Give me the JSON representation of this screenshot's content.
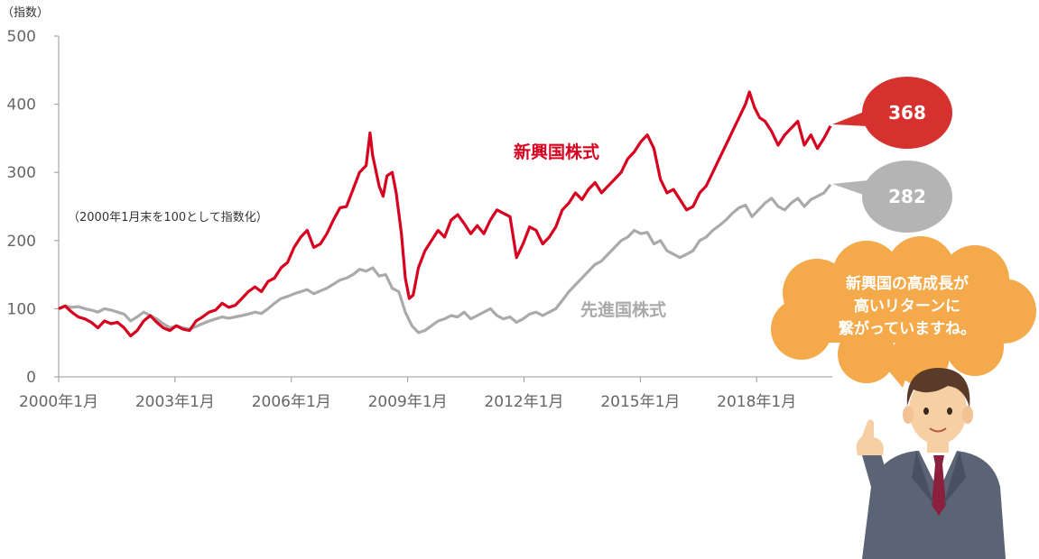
{
  "chart_data": {
    "type": "line",
    "y_unit_label": "（指数）",
    "note": "（2000年1月末を100として指数化）",
    "ylim": [
      0,
      500
    ],
    "y_ticks": [
      "0",
      "100",
      "200",
      "300",
      "400",
      "500"
    ],
    "x_tick_labels": [
      "2000年1月",
      "2003年1月",
      "2006年1月",
      "2009年1月",
      "2012年1月",
      "2015年1月",
      "2018年1月"
    ],
    "series": [
      {
        "name": "新興国株式",
        "color": "#d7001f",
        "end_value_label": "368",
        "points": [
          [
            2000.0,
            100
          ],
          [
            2000.25,
            104
          ],
          [
            2000.5,
            95
          ],
          [
            2000.75,
            88
          ],
          [
            2001.0,
            85
          ],
          [
            2001.25,
            80
          ],
          [
            2001.5,
            72
          ],
          [
            2001.75,
            82
          ],
          [
            2002.0,
            78
          ],
          [
            2002.25,
            80
          ],
          [
            2002.5,
            72
          ],
          [
            2002.75,
            60
          ],
          [
            2003.0,
            68
          ],
          [
            2003.25,
            82
          ],
          [
            2003.5,
            90
          ],
          [
            2003.75,
            80
          ],
          [
            2004.0,
            72
          ],
          [
            2004.25,
            68
          ],
          [
            2004.5,
            75
          ],
          [
            2004.75,
            70
          ],
          [
            2005.0,
            68
          ],
          [
            2005.25,
            82
          ],
          [
            2005.5,
            88
          ],
          [
            2005.75,
            95
          ],
          [
            2006.0,
            98
          ],
          [
            2006.25,
            108
          ],
          [
            2006.5,
            102
          ],
          [
            2006.75,
            105
          ],
          [
            2007.0,
            115
          ],
          [
            2007.25,
            125
          ],
          [
            2007.5,
            132
          ],
          [
            2007.75,
            125
          ],
          [
            2008.0,
            140
          ],
          [
            2008.25,
            145
          ],
          [
            2008.5,
            160
          ],
          [
            2008.75,
            168
          ],
          [
            2009.0,
            190
          ],
          [
            2009.25,
            205
          ],
          [
            2009.5,
            215
          ],
          [
            2009.75,
            190
          ],
          [
            2010.0,
            195
          ],
          [
            2010.25,
            210
          ],
          [
            2010.5,
            230
          ],
          [
            2010.75,
            248
          ],
          [
            2011.0,
            250
          ],
          [
            2011.25,
            275
          ],
          [
            2011.5,
            300
          ],
          [
            2011.75,
            310
          ],
          [
            2011.9,
            358
          ],
          [
            2012.0,
            325
          ],
          [
            2012.25,
            280
          ],
          [
            2012.4,
            265
          ],
          [
            2012.55,
            295
          ],
          [
            2012.75,
            300
          ],
          [
            2012.9,
            270
          ],
          [
            2013.1,
            210
          ],
          [
            2013.25,
            145
          ],
          [
            2013.4,
            115
          ],
          [
            2013.55,
            120
          ],
          [
            2013.75,
            160
          ],
          [
            2014.0,
            185
          ],
          [
            2014.25,
            200
          ],
          [
            2014.5,
            215
          ],
          [
            2014.75,
            205
          ],
          [
            2015.0,
            230
          ],
          [
            2015.25,
            238
          ],
          [
            2015.5,
            225
          ],
          [
            2015.75,
            210
          ],
          [
            2016.0,
            222
          ],
          [
            2016.25,
            210
          ],
          [
            2016.5,
            230
          ],
          [
            2016.75,
            245
          ],
          [
            2017.0,
            240
          ],
          [
            2017.25,
            235
          ],
          [
            2017.5,
            175
          ],
          [
            2017.75,
            195
          ],
          [
            2018.0,
            220
          ],
          [
            2018.25,
            215
          ],
          [
            2018.5,
            195
          ],
          [
            2018.75,
            205
          ],
          [
            2019.0,
            220
          ],
          [
            2019.25,
            245
          ],
          [
            2019.5,
            255
          ],
          [
            2019.75,
            270
          ],
          [
            2020.0,
            260
          ],
          [
            2020.25,
            275
          ],
          [
            2020.5,
            285
          ],
          [
            2020.75,
            270
          ],
          [
            2021.0,
            280
          ],
          [
            2021.25,
            290
          ],
          [
            2021.5,
            300
          ],
          [
            2021.75,
            320
          ],
          [
            2022.0,
            330
          ],
          [
            2022.25,
            345
          ],
          [
            2022.5,
            355
          ],
          [
            2022.75,
            335
          ],
          [
            2023.0,
            290
          ],
          [
            2023.25,
            270
          ],
          [
            2023.5,
            275
          ],
          [
            2023.75,
            260
          ],
          [
            2024.0,
            245
          ],
          [
            2024.25,
            250
          ],
          [
            2024.5,
            270
          ],
          [
            2024.75,
            280
          ],
          [
            2025.0,
            300
          ],
          [
            2025.25,
            320
          ],
          [
            2025.5,
            340
          ],
          [
            2025.75,
            360
          ],
          [
            2026.0,
            380
          ],
          [
            2026.25,
            400
          ],
          [
            2026.4,
            418
          ],
          [
            2026.6,
            395
          ],
          [
            2026.8,
            380
          ],
          [
            2027.0,
            375
          ],
          [
            2027.25,
            360
          ],
          [
            2027.5,
            340
          ],
          [
            2027.75,
            355
          ],
          [
            2028.0,
            365
          ],
          [
            2028.25,
            375
          ],
          [
            2028.5,
            340
          ],
          [
            2028.75,
            355
          ],
          [
            2029.0,
            335
          ],
          [
            2029.25,
            350
          ],
          [
            2029.5,
            368
          ]
        ]
      },
      {
        "name": "先進国株式",
        "color": "#aaaaaa",
        "end_value_label": "282",
        "points": [
          [
            2000.0,
            100
          ],
          [
            2000.25,
            104
          ],
          [
            2000.5,
            102
          ],
          [
            2000.75,
            103
          ],
          [
            2001.0,
            100
          ],
          [
            2001.25,
            98
          ],
          [
            2001.5,
            95
          ],
          [
            2001.75,
            100
          ],
          [
            2002.0,
            98
          ],
          [
            2002.25,
            95
          ],
          [
            2002.5,
            92
          ],
          [
            2002.75,
            82
          ],
          [
            2003.0,
            88
          ],
          [
            2003.25,
            95
          ],
          [
            2003.5,
            90
          ],
          [
            2003.75,
            85
          ],
          [
            2004.0,
            78
          ],
          [
            2004.25,
            72
          ],
          [
            2004.5,
            75
          ],
          [
            2004.75,
            72
          ],
          [
            2005.0,
            70
          ],
          [
            2005.25,
            74
          ],
          [
            2005.5,
            78
          ],
          [
            2005.75,
            82
          ],
          [
            2006.0,
            85
          ],
          [
            2006.25,
            88
          ],
          [
            2006.5,
            86
          ],
          [
            2006.75,
            88
          ],
          [
            2007.0,
            90
          ],
          [
            2007.25,
            92
          ],
          [
            2007.5,
            95
          ],
          [
            2007.75,
            93
          ],
          [
            2008.0,
            100
          ],
          [
            2008.25,
            108
          ],
          [
            2008.5,
            115
          ],
          [
            2008.75,
            118
          ],
          [
            2009.0,
            122
          ],
          [
            2009.25,
            125
          ],
          [
            2009.5,
            128
          ],
          [
            2009.75,
            122
          ],
          [
            2010.0,
            126
          ],
          [
            2010.25,
            130
          ],
          [
            2010.5,
            136
          ],
          [
            2010.75,
            142
          ],
          [
            2011.0,
            145
          ],
          [
            2011.25,
            150
          ],
          [
            2011.5,
            158
          ],
          [
            2011.75,
            155
          ],
          [
            2012.0,
            160
          ],
          [
            2012.25,
            148
          ],
          [
            2012.5,
            150
          ],
          [
            2012.75,
            130
          ],
          [
            2013.0,
            125
          ],
          [
            2013.25,
            95
          ],
          [
            2013.5,
            75
          ],
          [
            2013.75,
            65
          ],
          [
            2014.0,
            68
          ],
          [
            2014.25,
            75
          ],
          [
            2014.5,
            82
          ],
          [
            2014.75,
            85
          ],
          [
            2015.0,
            90
          ],
          [
            2015.25,
            88
          ],
          [
            2015.5,
            95
          ],
          [
            2015.75,
            85
          ],
          [
            2016.0,
            90
          ],
          [
            2016.25,
            95
          ],
          [
            2016.5,
            100
          ],
          [
            2016.75,
            90
          ],
          [
            2017.0,
            85
          ],
          [
            2017.25,
            88
          ],
          [
            2017.5,
            80
          ],
          [
            2017.75,
            85
          ],
          [
            2018.0,
            92
          ],
          [
            2018.25,
            95
          ],
          [
            2018.5,
            90
          ],
          [
            2018.75,
            95
          ],
          [
            2019.0,
            100
          ],
          [
            2019.25,
            112
          ],
          [
            2019.5,
            125
          ],
          [
            2019.75,
            135
          ],
          [
            2020.0,
            145
          ],
          [
            2020.25,
            155
          ],
          [
            2020.5,
            165
          ],
          [
            2020.75,
            170
          ],
          [
            2021.0,
            180
          ],
          [
            2021.25,
            190
          ],
          [
            2021.5,
            200
          ],
          [
            2021.75,
            205
          ],
          [
            2022.0,
            215
          ],
          [
            2022.25,
            210
          ],
          [
            2022.5,
            212
          ],
          [
            2022.75,
            195
          ],
          [
            2023.0,
            200
          ],
          [
            2023.25,
            185
          ],
          [
            2023.5,
            180
          ],
          [
            2023.75,
            175
          ],
          [
            2024.0,
            180
          ],
          [
            2024.25,
            185
          ],
          [
            2024.5,
            200
          ],
          [
            2024.75,
            205
          ],
          [
            2025.0,
            215
          ],
          [
            2025.25,
            222
          ],
          [
            2025.5,
            230
          ],
          [
            2025.75,
            240
          ],
          [
            2026.0,
            248
          ],
          [
            2026.25,
            252
          ],
          [
            2026.5,
            235
          ],
          [
            2026.75,
            245
          ],
          [
            2027.0,
            255
          ],
          [
            2027.25,
            262
          ],
          [
            2027.5,
            250
          ],
          [
            2027.75,
            245
          ],
          [
            2028.0,
            255
          ],
          [
            2028.25,
            262
          ],
          [
            2028.5,
            250
          ],
          [
            2028.75,
            260
          ],
          [
            2029.0,
            265
          ],
          [
            2029.25,
            270
          ],
          [
            2029.5,
            282
          ]
        ]
      }
    ]
  },
  "callout": {
    "lines": [
      "新興国の高成長が",
      "高いリターンに",
      "繋がっていますね。"
    ],
    "color": "#f4a94a"
  }
}
